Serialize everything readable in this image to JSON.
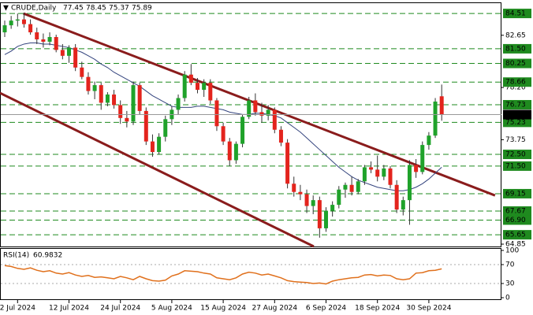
{
  "chart_data": [
    {
      "type": "candlestick",
      "title": "CRUDE,Daily",
      "categories": [
        null,
        null,
        "2 Jul 2024",
        null,
        null,
        null,
        null,
        null,
        null,
        null,
        "12 Jul 2024",
        null,
        null,
        null,
        null,
        null,
        null,
        null,
        "24 Jul 2024",
        null,
        null,
        null,
        null,
        null,
        null,
        null,
        "5 Aug 2024",
        null,
        null,
        null,
        null,
        null,
        null,
        null,
        "15 Aug 2024",
        null,
        null,
        null,
        null,
        null,
        null,
        null,
        "27 Aug 2024",
        null,
        null,
        null,
        null,
        null,
        null,
        null,
        "6 Sep 2024",
        null,
        null,
        null,
        null,
        null,
        null,
        null,
        "18 Sep 2024",
        null,
        null,
        null,
        null,
        null,
        null,
        null,
        "30 Sep 2024",
        null,
        null
      ],
      "open": [
        82.9,
        83.5,
        83.9,
        84.0,
        83.6,
        82.9,
        82.3,
        82.1,
        82.5,
        81.4,
        80.9,
        81.6,
        79.9,
        79.1,
        77.9,
        78.4,
        76.9,
        77.6,
        76.7,
        75.6,
        75.3,
        78.4,
        76.2,
        73.6,
        72.7,
        74.0,
        75.5,
        76.3,
        77.3,
        79.3,
        78.6,
        78.0,
        78.6,
        77.1,
        74.9,
        73.6,
        72.0,
        73.4,
        75.7,
        77.1,
        76.1,
        75.8,
        76.3,
        74.6,
        73.5,
        70.0,
        69.3,
        69.1,
        68.1,
        68.6,
        66.2,
        67.7,
        68.2,
        69.5,
        69.9,
        69.3,
        70.2,
        71.4,
        71.2,
        70.6,
        71.3,
        69.9,
        67.8,
        68.6,
        71.6,
        71.0,
        73.3,
        74.1,
        77.45
      ],
      "high": [
        83.9,
        84.3,
        84.5,
        84.7,
        84.0,
        83.3,
        82.8,
        82.9,
        82.7,
        81.9,
        81.8,
        81.9,
        80.4,
        79.5,
        78.7,
        78.6,
        77.8,
        78.0,
        77.1,
        76.2,
        78.7,
        78.6,
        76.5,
        74.2,
        74.3,
        75.8,
        76.6,
        77.6,
        79.6,
        80.2,
        79.0,
        78.9,
        78.9,
        77.3,
        75.2,
        73.9,
        73.6,
        75.9,
        77.4,
        77.7,
        76.9,
        76.7,
        76.5,
        74.9,
        73.8,
        70.6,
        69.9,
        69.5,
        69.0,
        68.9,
        68.0,
        68.5,
        69.8,
        70.1,
        70.6,
        70.4,
        71.6,
        71.9,
        72.4,
        71.6,
        71.5,
        70.3,
        68.9,
        72.0,
        72.1,
        73.6,
        74.4,
        77.3,
        78.45
      ],
      "low": [
        82.5,
        83.2,
        83.4,
        83.3,
        82.7,
        81.9,
        81.6,
        81.8,
        81.2,
        80.6,
        80.3,
        79.6,
        78.9,
        77.6,
        77.2,
        76.3,
        76.6,
        76.4,
        75.1,
        74.8,
        75.0,
        75.9,
        73.3,
        72.3,
        72.5,
        73.6,
        75.0,
        75.9,
        77.0,
        78.4,
        77.7,
        77.4,
        76.8,
        74.5,
        73.3,
        71.5,
        71.7,
        73.1,
        75.5,
        75.8,
        75.2,
        75.4,
        74.3,
        73.2,
        69.6,
        68.9,
        68.6,
        67.5,
        67.4,
        65.4,
        65.9,
        67.2,
        67.9,
        68.8,
        69.0,
        69.1,
        69.9,
        70.9,
        70.2,
        70.3,
        69.6,
        67.5,
        67.3,
        66.5,
        70.5,
        70.8,
        72.9,
        73.9,
        75.37
      ],
      "close": [
        83.5,
        83.9,
        84.0,
        83.6,
        82.9,
        82.3,
        82.1,
        82.5,
        81.4,
        80.9,
        81.6,
        79.9,
        79.1,
        77.9,
        78.4,
        76.9,
        77.6,
        76.7,
        75.6,
        75.3,
        78.4,
        76.2,
        73.6,
        72.7,
        74.0,
        75.5,
        76.3,
        77.3,
        79.3,
        78.6,
        78.0,
        78.6,
        77.1,
        74.9,
        73.6,
        72.0,
        73.4,
        75.7,
        77.1,
        76.1,
        75.8,
        76.3,
        74.6,
        73.5,
        70.0,
        69.3,
        69.1,
        68.1,
        68.6,
        66.2,
        67.7,
        68.2,
        69.5,
        69.9,
        69.3,
        70.2,
        71.4,
        71.2,
        70.6,
        71.3,
        69.9,
        67.8,
        68.6,
        71.6,
        71.0,
        73.3,
        74.1,
        77.0,
        75.89
      ],
      "ma": [
        81.0,
        81.3,
        81.7,
        81.9,
        82.0,
        82.0,
        81.9,
        81.9,
        81.8,
        81.7,
        81.6,
        81.4,
        81.2,
        80.9,
        80.6,
        80.2,
        79.9,
        79.5,
        79.2,
        78.9,
        78.6,
        78.3,
        77.9,
        77.5,
        77.2,
        76.9,
        76.6,
        76.5,
        76.5,
        76.5,
        76.6,
        76.6,
        76.5,
        76.4,
        76.3,
        76.1,
        76.0,
        75.9,
        75.9,
        76.0,
        76.0,
        75.9,
        75.8,
        75.6,
        75.2,
        74.8,
        74.4,
        73.9,
        73.4,
        72.9,
        72.4,
        71.9,
        71.4,
        71.0,
        70.6,
        70.3,
        70.1,
        69.9,
        69.7,
        69.6,
        69.5,
        69.4,
        69.4,
        69.5,
        69.7,
        70.0,
        70.4,
        70.9,
        71.4
      ],
      "up_color": "#1fa22a",
      "down_color": "#e3241d",
      "ma_color": "#34447e",
      "level_color": "#1f8a1f",
      "trend_color": "#8a1c1c",
      "ylim": [
        64.65,
        85.32
      ],
      "yticks": [
        82.65,
        {
          "value": 78.2,
          "label": "78.20"
        },
        73.75,
        64.85
      ],
      "levels": [
        84.51,
        {
          "value": 81.5,
          "label": "81.50"
        },
        80.25,
        78.66,
        76.73,
        75.23,
        {
          "value": 72.5,
          "label": "72.50"
        },
        {
          "value": 71.5,
          "label": "71.50"
        },
        69.15,
        67.67,
        {
          "value": 66.9,
          "label": "66.90"
        },
        65.65
      ],
      "trendlines": [
        [
          [
            2.9,
            84.51
          ],
          [
            76.3,
            69.0
          ]
        ],
        [
          [
            -0.74,
            77.73
          ],
          [
            48.1,
            64.65
          ]
        ]
      ]
    },
    {
      "type": "line",
      "title": "RSI(14)",
      "color": "#e0701c",
      "values": [
        68,
        66,
        62,
        60,
        63,
        58,
        55,
        57,
        52,
        50,
        53,
        48,
        45,
        47,
        43,
        44,
        42,
        40,
        45,
        42,
        38,
        45,
        40,
        36,
        35,
        37,
        46,
        50,
        57,
        56,
        55,
        52,
        50,
        42,
        40,
        38,
        42,
        50,
        54,
        52,
        48,
        50,
        46,
        42,
        36,
        34,
        33,
        32,
        30,
        31,
        29,
        35,
        38,
        40,
        42,
        43,
        48,
        49,
        46,
        48,
        47,
        40,
        38,
        40,
        52,
        53,
        57,
        58,
        60.9832
      ],
      "ylim": [
        0,
        100
      ],
      "yticks": [
        0,
        30,
        70,
        100
      ]
    }
  ]
}
